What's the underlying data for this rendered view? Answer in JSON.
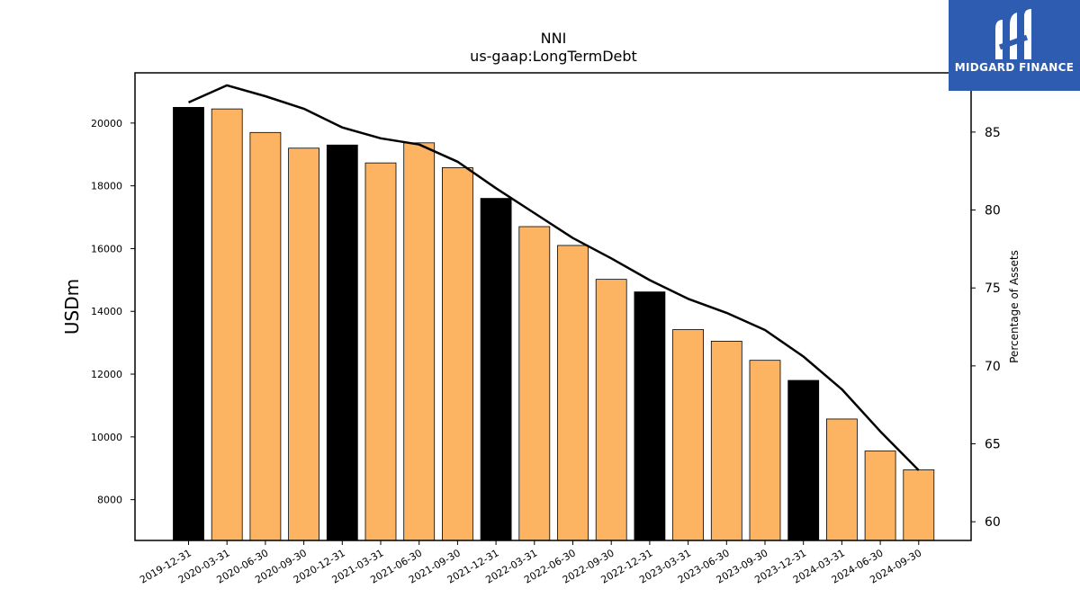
{
  "chart_data": {
    "type": "bar",
    "title": "NNI",
    "subtitle": "us-gaap:LongTermDebt",
    "ylabel": "USDm",
    "y2label": "Percentage of Assets",
    "ylim": [
      6700,
      21600
    ],
    "y2lim": [
      58.8,
      88.8
    ],
    "yticks": [
      8000,
      10000,
      12000,
      14000,
      16000,
      18000,
      20000
    ],
    "y2ticks": [
      60,
      65,
      70,
      75,
      80,
      85
    ],
    "categories": [
      "2019-12-31",
      "2020-03-31",
      "2020-06-30",
      "2020-09-30",
      "2020-12-31",
      "2021-03-31",
      "2021-06-30",
      "2021-09-30",
      "2021-12-31",
      "2022-03-31",
      "2022-06-30",
      "2022-09-30",
      "2022-12-31",
      "2023-03-31",
      "2023-06-30",
      "2023-09-30",
      "2023-12-31",
      "2024-03-31",
      "2024-06-30",
      "2024-09-30"
    ],
    "series": [
      {
        "kind": "bar",
        "values": [
          20500,
          20450,
          19700,
          19200,
          19300,
          18730,
          19370,
          18580,
          17600,
          16700,
          16100,
          15020,
          14620,
          13420,
          13050,
          12440,
          11800,
          10570,
          9550,
          8950
        ]
      },
      {
        "kind": "line",
        "axis": "right",
        "values": [
          86.9,
          88.0,
          87.3,
          86.5,
          85.3,
          84.6,
          84.2,
          83.1,
          81.4,
          79.8,
          78.2,
          76.9,
          75.5,
          74.3,
          73.4,
          72.3,
          70.6,
          68.5,
          65.8,
          63.3
        ]
      }
    ],
    "bar_colors": {
      "year_end": "#000000",
      "quarter": "#fdb462"
    },
    "line_color": "#000000",
    "grid": false,
    "legend": "none"
  },
  "logo": {
    "text": "MIDGARD FINANCE",
    "color": "#2d5cb0"
  }
}
